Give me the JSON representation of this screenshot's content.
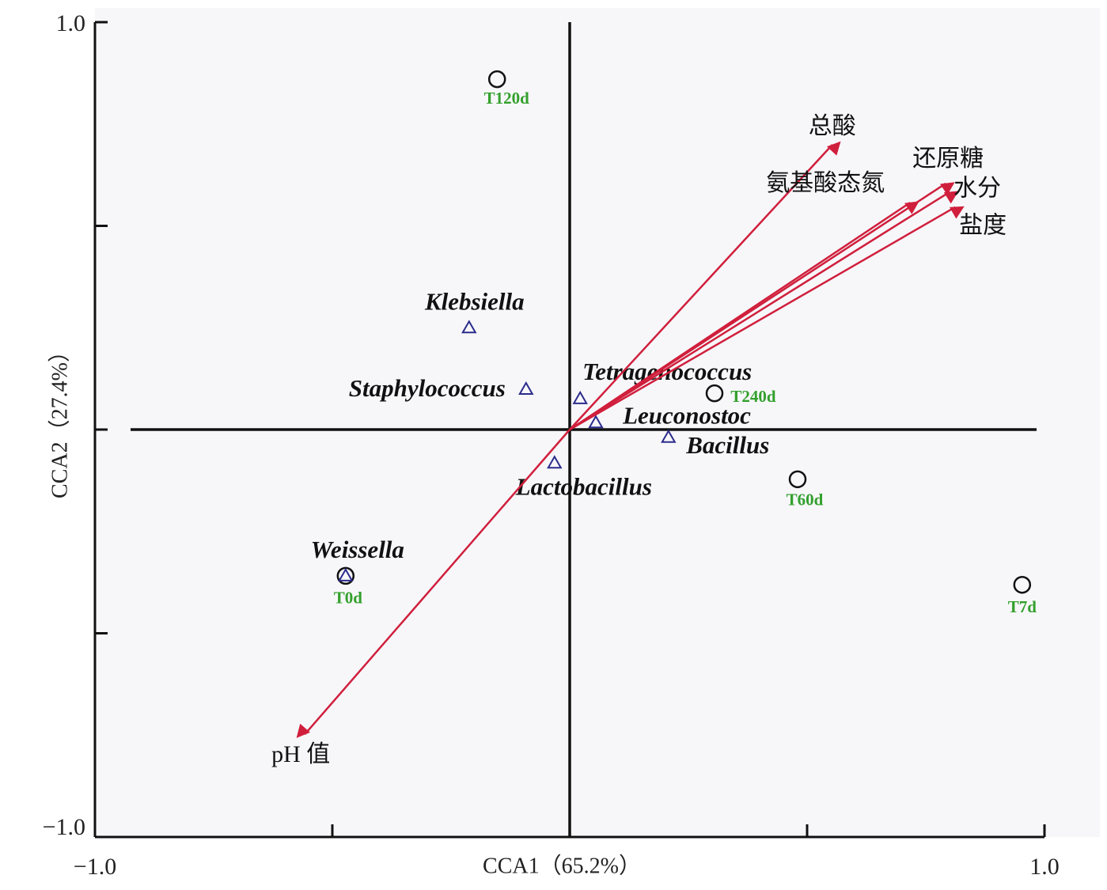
{
  "chart_data": {
    "type": "scatter",
    "x_label": "CCA1（65.2%）",
    "y_label": "CCA2（27.4%）",
    "xlim": [
      -1,
      1
    ],
    "ylim": [
      -1,
      1
    ],
    "xticks": [
      {
        "value": -1,
        "label": "−1.0"
      },
      {
        "value": -0.5,
        "label": null
      },
      {
        "value": 0,
        "label": null
      },
      {
        "value": 0.5,
        "label": null
      },
      {
        "value": 1,
        "label": "1.0"
      }
    ],
    "yticks": [
      {
        "value": -1,
        "label": "−1.0"
      },
      {
        "value": -0.5,
        "label": null
      },
      {
        "value": 0,
        "label": null
      },
      {
        "value": 0.5,
        "label": null
      },
      {
        "value": 1,
        "label": "1.0"
      }
    ],
    "series": [
      {
        "type": "scatter",
        "marker": "circle",
        "color": "#111111",
        "label_color": "#33a02c",
        "labels": [
          "T120d",
          "T240d",
          "T60d",
          "T7d",
          "T0d"
        ],
        "x": [
          -0.153,
          0.305,
          0.48,
          0.953,
          -0.472
        ],
        "values": [
          0.86,
          0.089,
          -0.122,
          -0.381,
          -0.359
        ]
      },
      {
        "type": "scatter",
        "marker": "triangle",
        "color": "#2b2b8c",
        "label_color": "#111111",
        "labels": [
          "Klebsiella",
          "Staphylococcus",
          "Tetragenococcus",
          "Leuconostoc",
          "Bacillus",
          "Lactobacillus",
          "Weissella"
        ],
        "x": [
          -0.212,
          -0.092,
          0.022,
          0.055,
          0.208,
          -0.032,
          -0.472
        ],
        "values": [
          0.25,
          0.099,
          0.076,
          0.017,
          -0.019,
          -0.082,
          -0.359
        ]
      },
      {
        "type": "arrow",
        "color": "#d01f3c",
        "label_color": "#111111",
        "labels": [
          "总酸",
          "氨基酸态氮",
          "还原糖",
          "水分",
          "盐度",
          "pH 值"
        ],
        "x": [
          0.553,
          0.717,
          0.792,
          0.8,
          0.812,
          -0.558
        ],
        "values": [
          0.699,
          0.557,
          0.604,
          0.583,
          0.546,
          -0.748
        ]
      }
    ]
  }
}
